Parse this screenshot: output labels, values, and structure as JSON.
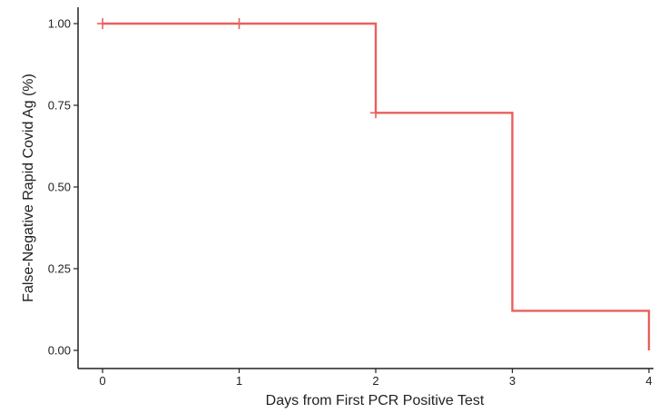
{
  "chart_data": {
    "type": "line",
    "step": true,
    "xlabel": "Days from First PCR Positive Test",
    "ylabel": "False-Negative Rapid Covid Ag (%)",
    "xlim": [
      0,
      4
    ],
    "ylim": [
      0,
      1
    ],
    "x_ticks": [
      0,
      1,
      2,
      3,
      4
    ],
    "x_tick_labels": [
      "0",
      "1",
      "2",
      "3",
      "4"
    ],
    "y_ticks": [
      0,
      0.25,
      0.5,
      0.75,
      1
    ],
    "y_tick_labels": [
      "0.00",
      "0.25",
      "0.50",
      "0.75",
      "1.00"
    ],
    "grid": false,
    "legend": "none",
    "series": [
      {
        "color": "#e8605c",
        "x": [
          0,
          2,
          3,
          4
        ],
        "y": [
          1.0,
          0.727,
          0.121,
          0.0
        ],
        "censored": [
          {
            "x": 0,
            "y": 1.0
          },
          {
            "x": 1,
            "y": 1.0
          },
          {
            "x": 2,
            "y": 0.727
          }
        ]
      }
    ]
  }
}
